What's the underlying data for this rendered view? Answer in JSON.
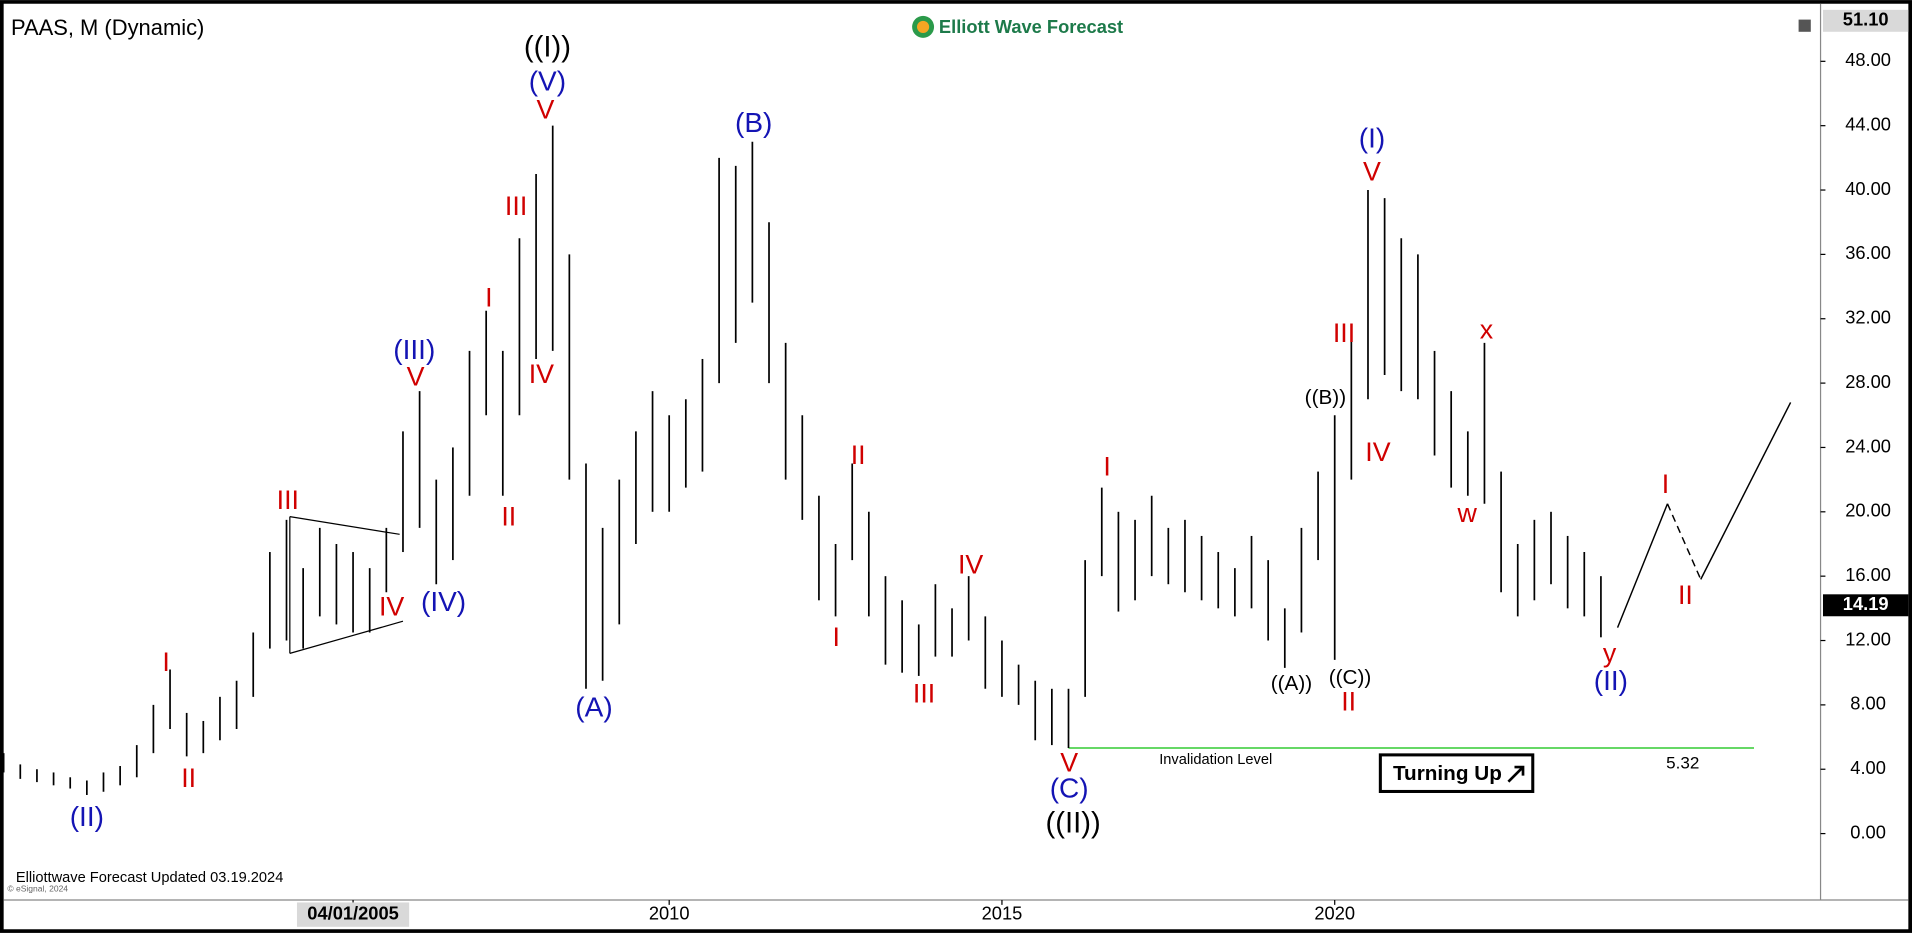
{
  "chart_data": {
    "type": "ohlc",
    "title": "PAAS, M (Dynamic)",
    "brand": "Elliott Wave Forecast",
    "footer": "Elliottwave Forecast Updated 03.19.2024",
    "copyright": "© eSignal, 2024",
    "xlim": [
      2000,
      2027.3
    ],
    "xticks": [
      {
        "value": 2005.25,
        "label": "04/01/2005"
      },
      2010,
      2015,
      2020
    ],
    "ylim": [
      -3.9,
      51.2
    ],
    "yticks": [
      {
        "value": 0,
        "label": "0.00"
      },
      {
        "value": 4,
        "label": "4.00"
      },
      {
        "value": 8,
        "label": "8.00"
      },
      {
        "value": 12,
        "label": "12.00"
      },
      {
        "value": 16,
        "label": "16.00"
      },
      {
        "value": 20,
        "label": "20.00"
      },
      {
        "value": 24,
        "label": "24.00"
      },
      {
        "value": 28,
        "label": "28.00"
      },
      {
        "value": 32,
        "label": "32.00"
      },
      {
        "value": 36,
        "label": "36.00"
      },
      {
        "value": 40,
        "label": "40.00"
      },
      {
        "value": 44,
        "label": "44.00"
      },
      {
        "value": 48,
        "label": "48.00"
      }
    ],
    "top_price": {
      "value": 51.1,
      "label": "51.10"
    },
    "last_price": 14.19,
    "color": "#000000",
    "x": [
      2000,
      2000.25,
      2000.5,
      2000.75,
      2001,
      2001.25,
      2001.5,
      2001.75,
      2002,
      2002.25,
      2002.5,
      2002.75,
      2003,
      2003.25,
      2003.5,
      2003.75,
      2004,
      2004.25,
      2004.5,
      2004.75,
      2005,
      2005.25,
      2005.5,
      2005.75,
      2006,
      2006.25,
      2006.5,
      2006.75,
      2007,
      2007.25,
      2007.5,
      2007.75,
      2008,
      2008.25,
      2008.5,
      2008.75,
      2009,
      2009.25,
      2009.5,
      2009.75,
      2010,
      2010.25,
      2010.5,
      2010.75,
      2011,
      2011.25,
      2011.5,
      2011.75,
      2012,
      2012.25,
      2012.5,
      2012.75,
      2013,
      2013.25,
      2013.5,
      2013.75,
      2014,
      2014.25,
      2014.5,
      2014.75,
      2015,
      2015.25,
      2015.5,
      2015.75,
      2016,
      2016.25,
      2016.5,
      2016.75,
      2017,
      2017.25,
      2017.5,
      2017.75,
      2018,
      2018.25,
      2018.5,
      2018.75,
      2019,
      2019.25,
      2019.5,
      2019.75,
      2020,
      2020.25,
      2020.5,
      2020.75,
      2021,
      2021.25,
      2021.5,
      2021.75,
      2022,
      2022.25,
      2022.5,
      2022.75,
      2023,
      2023.25,
      2023.5,
      2023.75,
      2024
    ],
    "high": [
      5.0,
      4.3,
      4.0,
      3.8,
      3.5,
      3.3,
      3.8,
      4.2,
      5.5,
      8.0,
      10.2,
      7.5,
      7.0,
      8.5,
      9.5,
      12.5,
      17.5,
      19.5,
      16.5,
      19.0,
      18.0,
      17.5,
      16.5,
      19.0,
      25.0,
      27.5,
      22.0,
      24.0,
      30.0,
      32.5,
      30.0,
      37.0,
      41.0,
      44.0,
      36.0,
      23.0,
      19.0,
      22.0,
      25.0,
      27.5,
      26.0,
      27.0,
      29.5,
      42.0,
      41.5,
      43.0,
      38.0,
      30.5,
      26.0,
      21.0,
      18.0,
      23.0,
      20.0,
      16.0,
      14.5,
      13.0,
      15.5,
      14.0,
      16.0,
      13.5,
      12.0,
      10.5,
      9.5,
      9.0,
      9.0,
      17.0,
      21.5,
      20.0,
      19.5,
      21.0,
      19.0,
      19.5,
      18.5,
      17.5,
      16.5,
      18.5,
      17.0,
      14.0,
      19.0,
      22.5,
      26.0,
      31.0,
      40.0,
      39.5,
      37.0,
      36.0,
      30.0,
      27.5,
      25.0,
      30.5,
      22.5,
      18.0,
      19.5,
      20.0,
      18.5,
      17.5,
      16.0
    ],
    "low": [
      3.8,
      3.4,
      3.2,
      3.0,
      2.8,
      2.4,
      2.6,
      3.0,
      3.5,
      5.0,
      6.5,
      4.8,
      5.0,
      5.8,
      6.5,
      8.5,
      11.5,
      12.0,
      11.5,
      13.5,
      13.0,
      12.5,
      12.5,
      15.0,
      17.5,
      19.0,
      15.5,
      17.0,
      21.0,
      26.0,
      21.0,
      26.0,
      29.5,
      30.0,
      22.0,
      9.0,
      9.5,
      13.0,
      18.0,
      20.0,
      20.0,
      21.5,
      22.5,
      28.0,
      30.5,
      33.0,
      28.0,
      22.0,
      19.5,
      14.5,
      13.5,
      17.0,
      13.5,
      10.5,
      10.0,
      9.8,
      11.0,
      11.0,
      12.0,
      9.0,
      8.5,
      8.0,
      5.8,
      5.5,
      5.32,
      8.5,
      16.0,
      13.8,
      14.5,
      16.0,
      15.5,
      15.0,
      14.5,
      14.0,
      13.5,
      14.0,
      12.0,
      10.3,
      12.5,
      17.0,
      10.8,
      22.0,
      27.0,
      28.5,
      27.5,
      27.0,
      23.5,
      21.5,
      21.0,
      20.5,
      15.0,
      13.5,
      14.5,
      15.5,
      14.0,
      13.5,
      12.2
    ],
    "invalidation": {
      "label": "Invalidation Level",
      "value": 5.32,
      "start": 2016,
      "end": 2026.3,
      "color": "#33cc33"
    },
    "badge": "Turning Up",
    "projection": {
      "x": [
        2024.25,
        2025.0,
        2025.5,
        2026.85
      ],
      "y": [
        12.8,
        20.5,
        15.8,
        26.8
      ]
    },
    "triangle": {
      "x": [
        2004.3,
        2005.95,
        2004.3,
        2006.0
      ],
      "y": [
        19.7,
        18.6,
        11.2,
        13.2
      ]
    },
    "annotations": [
      {
        "text": "((I))",
        "x": 2008.17,
        "y": 48.77,
        "color": "#000000"
      },
      {
        "text": "(V)",
        "x": 2008.17,
        "y": 46.65,
        "color": "#1414b4"
      },
      {
        "text": "V",
        "x": 2008.14,
        "y": 44.9,
        "color": "#d00000"
      },
      {
        "text": "III",
        "x": 2007.7,
        "y": 38.9,
        "color": "#d00000"
      },
      {
        "text": "IV",
        "x": 2008.08,
        "y": 28.45,
        "color": "#d00000"
      },
      {
        "text": "I",
        "x": 2007.29,
        "y": 33.2,
        "color": "#d00000"
      },
      {
        "text": "II",
        "x": 2007.59,
        "y": 19.6,
        "color": "#d00000"
      },
      {
        "text": "(III)",
        "x": 2006.17,
        "y": 29.97,
        "color": "#1414b4"
      },
      {
        "text": "V",
        "x": 2006.19,
        "y": 28.3,
        "color": "#d00000"
      },
      {
        "text": "III",
        "x": 2004.27,
        "y": 20.6,
        "color": "#d00000"
      },
      {
        "text": "IV",
        "x": 2005.83,
        "y": 14.0,
        "color": "#d00000"
      },
      {
        "text": "(IV)",
        "x": 2006.61,
        "y": 14.3,
        "color": "#1414b4"
      },
      {
        "text": "I",
        "x": 2002.44,
        "y": 10.54,
        "color": "#d00000"
      },
      {
        "text": "II",
        "x": 2002.78,
        "y": 3.34,
        "color": "#d00000"
      },
      {
        "text": "(II)",
        "x": 2001.25,
        "y": 0.92,
        "color": "#1414b4"
      },
      {
        "text": "(A)",
        "x": 2008.87,
        "y": 7.74,
        "color": "#1414b4"
      },
      {
        "text": "(B)",
        "x": 2011.27,
        "y": 44.07,
        "color": "#1414b4"
      },
      {
        "text": "II",
        "x": 2012.84,
        "y": 23.4,
        "color": "#d00000"
      },
      {
        "text": "I",
        "x": 2012.51,
        "y": 12.1,
        "color": "#d00000"
      },
      {
        "text": "III",
        "x": 2013.83,
        "y": 8.6,
        "color": "#d00000"
      },
      {
        "text": "IV",
        "x": 2014.53,
        "y": 16.6,
        "color": "#d00000"
      },
      {
        "text": "V",
        "x": 2016.01,
        "y": 4.3,
        "color": "#d00000"
      },
      {
        "text": "(C)",
        "x": 2016.01,
        "y": 2.7,
        "color": "#1414b4"
      },
      {
        "text": "((II))",
        "x": 2016.07,
        "y": 0.55,
        "color": "#000000"
      },
      {
        "text": "I",
        "x": 2016.58,
        "y": 22.7,
        "color": "#d00000"
      },
      {
        "text": "((A))",
        "x": 2019.35,
        "y": 9.27,
        "color": "#000000"
      },
      {
        "text": "((B))",
        "x": 2019.86,
        "y": 27.05,
        "color": "#000000"
      },
      {
        "text": "((C))",
        "x": 2020.23,
        "y": 9.65,
        "color": "#000000"
      },
      {
        "text": "II",
        "x": 2020.21,
        "y": 8.1,
        "color": "#d00000"
      },
      {
        "text": "III",
        "x": 2020.14,
        "y": 30.99,
        "color": "#d00000"
      },
      {
        "text": "IV",
        "x": 2020.65,
        "y": 23.6,
        "color": "#d00000"
      },
      {
        "text": "(I)",
        "x": 2020.56,
        "y": 43.1,
        "color": "#1414b4"
      },
      {
        "text": "V",
        "x": 2020.56,
        "y": 41.04,
        "color": "#d00000"
      },
      {
        "text": "x",
        "x": 2022.28,
        "y": 31.2,
        "color": "#d00000"
      },
      {
        "text": "w",
        "x": 2021.99,
        "y": 19.8,
        "color": "#d00000"
      },
      {
        "text": "y",
        "x": 2024.13,
        "y": 11.1,
        "color": "#d00000"
      },
      {
        "text": "(II)",
        "x": 2024.15,
        "y": 9.4,
        "color": "#1414b4"
      },
      {
        "text": "I",
        "x": 2024.97,
        "y": 21.6,
        "color": "#d00000"
      },
      {
        "text": "II",
        "x": 2025.27,
        "y": 14.7,
        "color": "#d00000"
      }
    ]
  }
}
